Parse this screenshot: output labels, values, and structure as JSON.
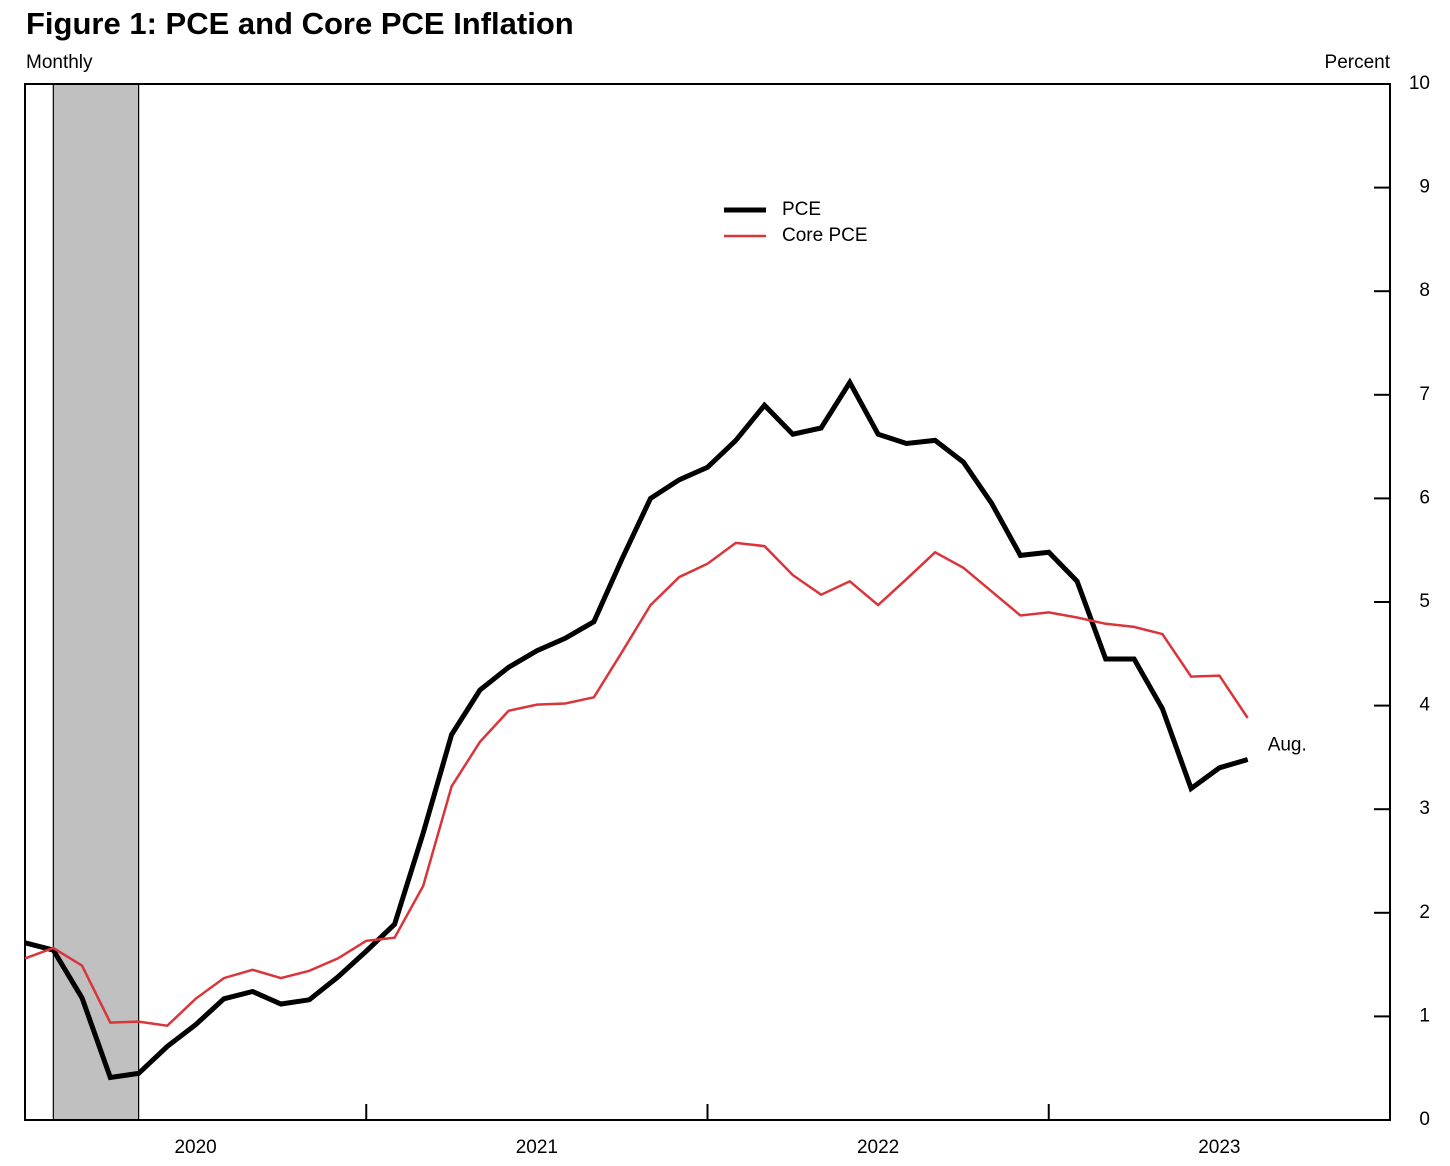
{
  "chart_data": {
    "type": "line",
    "title": "Figure 1: PCE and Core PCE Inflation",
    "subtitle": "Monthly",
    "y_axis_label": "Percent",
    "annotation": "Aug.",
    "x": [
      2020,
      2020.083,
      2020.167,
      2020.25,
      2020.333,
      2020.417,
      2020.5,
      2020.583,
      2020.667,
      2020.75,
      2020.833,
      2020.917,
      2021,
      2021.083,
      2021.167,
      2021.25,
      2021.333,
      2021.417,
      2021.5,
      2021.583,
      2021.667,
      2021.75,
      2021.833,
      2021.917,
      2022,
      2022.083,
      2022.167,
      2022.25,
      2022.333,
      2022.417,
      2022.5,
      2022.583,
      2022.667,
      2022.75,
      2022.833,
      2022.917,
      2023,
      2023.083,
      2023.167,
      2023.25,
      2023.333,
      2023.417,
      2023.5,
      2023.583
    ],
    "series": [
      {
        "name": "PCE",
        "color": "#000000",
        "width": 5,
        "values": [
          1.71,
          1.64,
          1.18,
          0.41,
          0.45,
          0.71,
          0.92,
          1.17,
          1.24,
          1.12,
          1.16,
          1.38,
          1.63,
          1.89,
          2.77,
          3.72,
          4.15,
          4.37,
          4.53,
          4.65,
          4.81,
          5.42,
          6.0,
          6.18,
          6.3,
          6.56,
          6.9,
          6.62,
          6.68,
          7.12,
          6.62,
          6.53,
          6.56,
          6.35,
          5.95,
          5.45,
          5.48,
          5.2,
          4.45,
          4.45,
          3.97,
          3.2,
          3.4,
          3.48
        ]
      },
      {
        "name": "Core PCE",
        "color": "#d9353b",
        "width": 2.5,
        "values": [
          1.56,
          1.66,
          1.49,
          0.94,
          0.95,
          0.91,
          1.17,
          1.37,
          1.45,
          1.37,
          1.44,
          1.56,
          1.73,
          1.76,
          2.26,
          3.22,
          3.65,
          3.95,
          4.01,
          4.02,
          4.08,
          4.52,
          4.97,
          5.24,
          5.37,
          5.57,
          5.54,
          5.26,
          5.07,
          5.2,
          4.97,
          5.22,
          5.48,
          5.33,
          5.1,
          4.87,
          4.9,
          4.85,
          4.79,
          4.76,
          4.69,
          4.28,
          4.29,
          3.88
        ]
      }
    ],
    "shaded_regions": [
      [
        2020.083,
        2020.333
      ]
    ],
    "xlim": [
      2020,
      2024
    ],
    "xticks": [
      2020,
      2021,
      2022,
      2023
    ],
    "ylim": [
      0,
      10
    ],
    "yticks": [
      0,
      1,
      2,
      3,
      4,
      5,
      6,
      7,
      8,
      9,
      10
    ]
  }
}
